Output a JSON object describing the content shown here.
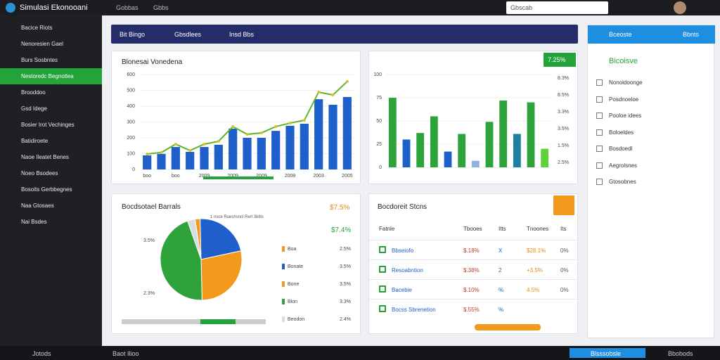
{
  "topbar": {
    "app_title": "Simulasi Ekonooani",
    "tabs": [
      "Gobbas",
      "Gbbs"
    ],
    "search": "Gbscab"
  },
  "sidebar": {
    "items": [
      "Bacice Riots",
      "Nenoresien Gael",
      "Burs Sosbntes",
      "Nestoredc Begnotlea",
      "Brooddoo",
      "Gsd Idege",
      "Bosier Irot Vechinges",
      "Batidiroete",
      "Naoe Ileatet Benes",
      "Noeo Bsodees",
      "Bosoits Gerbbegnes",
      "Naa Gtosaes",
      "Nai Bsdes"
    ],
    "active": 3
  },
  "header": {
    "items": [
      "Bit Bingo",
      "Gbsdlees",
      "Insd Bbs"
    ]
  },
  "main_chart": {
    "type": "bar",
    "title": "Blonesai Vonedena",
    "ylim": [
      0,
      600
    ],
    "yticks": [
      0,
      100,
      200,
      300,
      400,
      500,
      600
    ],
    "color": "#1f5fc9",
    "line_color": "#5fb52a",
    "categories": [
      "boo",
      null,
      "boo",
      null,
      "2009",
      null,
      "2009",
      null,
      "2009",
      null,
      "2009",
      null,
      "2003",
      null,
      "2005"
    ],
    "values": [
      89,
      98,
      142,
      111,
      142,
      156,
      258,
      200,
      200,
      244,
      276,
      289,
      444,
      409,
      458
    ],
    "line": [
      98,
      107,
      160,
      120,
      160,
      178,
      271,
      222,
      231,
      271,
      293,
      311,
      489,
      471,
      556
    ]
  },
  "side_chart": {
    "type": "bar",
    "badge": "7.25%",
    "ylim": [
      0,
      100
    ],
    "yticks": [
      0,
      25,
      50,
      75,
      100
    ],
    "right_labels": [
      "8.3%",
      "8.5%",
      "3.3%",
      "3.5%",
      "1.5%",
      "2.5%"
    ],
    "values": [
      75,
      30,
      37,
      55,
      17,
      36,
      7,
      49,
      72,
      36,
      70,
      20
    ],
    "colors": [
      "#2ea33b",
      "#1f5fc9",
      "#2ea33b",
      "#2ea33b",
      "#1f5fc9",
      "#2ea33b",
      "#8fb0e0",
      "#2ea33b",
      "#2ea33b",
      "#1f7fa0",
      "#2ea33b",
      "#5fd13a"
    ]
  },
  "pie_chart": {
    "type": "pie",
    "title": "Bocdsotael Barrals",
    "badge": "$7.5%",
    "subtitle": "1 nsce  Rueshsncl Rerl 3bltls",
    "side_labels": [
      "3.5%",
      "2.3%"
    ],
    "metric": "$7.4%",
    "values": [
      2,
      22,
      28,
      45,
      3
    ],
    "colors": [
      "#f39a1c",
      "#1f5fc9",
      "#f39a1c",
      "#2ea33b",
      "#d9dde3"
    ],
    "legend": [
      {
        "name": "Boa",
        "value": "2.5%"
      },
      {
        "name": "Bonate",
        "value": "3.5%"
      },
      {
        "name": "Bone",
        "value": "3.5%"
      },
      {
        "name": "Blon",
        "value": "3.3%"
      },
      {
        "name": "Beodon",
        "value": "2.4%"
      }
    ]
  },
  "table": {
    "title": "Bocdoreit Stcns",
    "header": [
      "Fatnle",
      "Tbooes",
      "Itts",
      "Tnoones",
      "Its"
    ],
    "rows": [
      [
        "Bbseiofo",
        "$.18%",
        "X",
        "$28.1%",
        "0%"
      ],
      [
        "Resoabntion",
        "$.38%",
        "2",
        "+3.5%",
        "0%"
      ],
      [
        "Bacebie",
        "$.10%",
        "%",
        "4.5%",
        "0%"
      ],
      [
        "Bocss Sbrenetion",
        "$.55%",
        "%",
        "",
        ""
      ]
    ]
  },
  "right_panel": {
    "title": "Bceoste",
    "menu": "Bbnts",
    "heading": "Bicoisve",
    "items": [
      "Nonoldoonge",
      "Posdnoeloe",
      "Pooloe idees",
      "Boloeldes",
      "Bosdoedl",
      "Aegrolsnes",
      "Gtosobnes"
    ]
  },
  "taskbar": {
    "left": "Jotods",
    "app": "Baot Ilioo",
    "right_app": "Blsssobsle",
    "clock": "Bbobods"
  }
}
